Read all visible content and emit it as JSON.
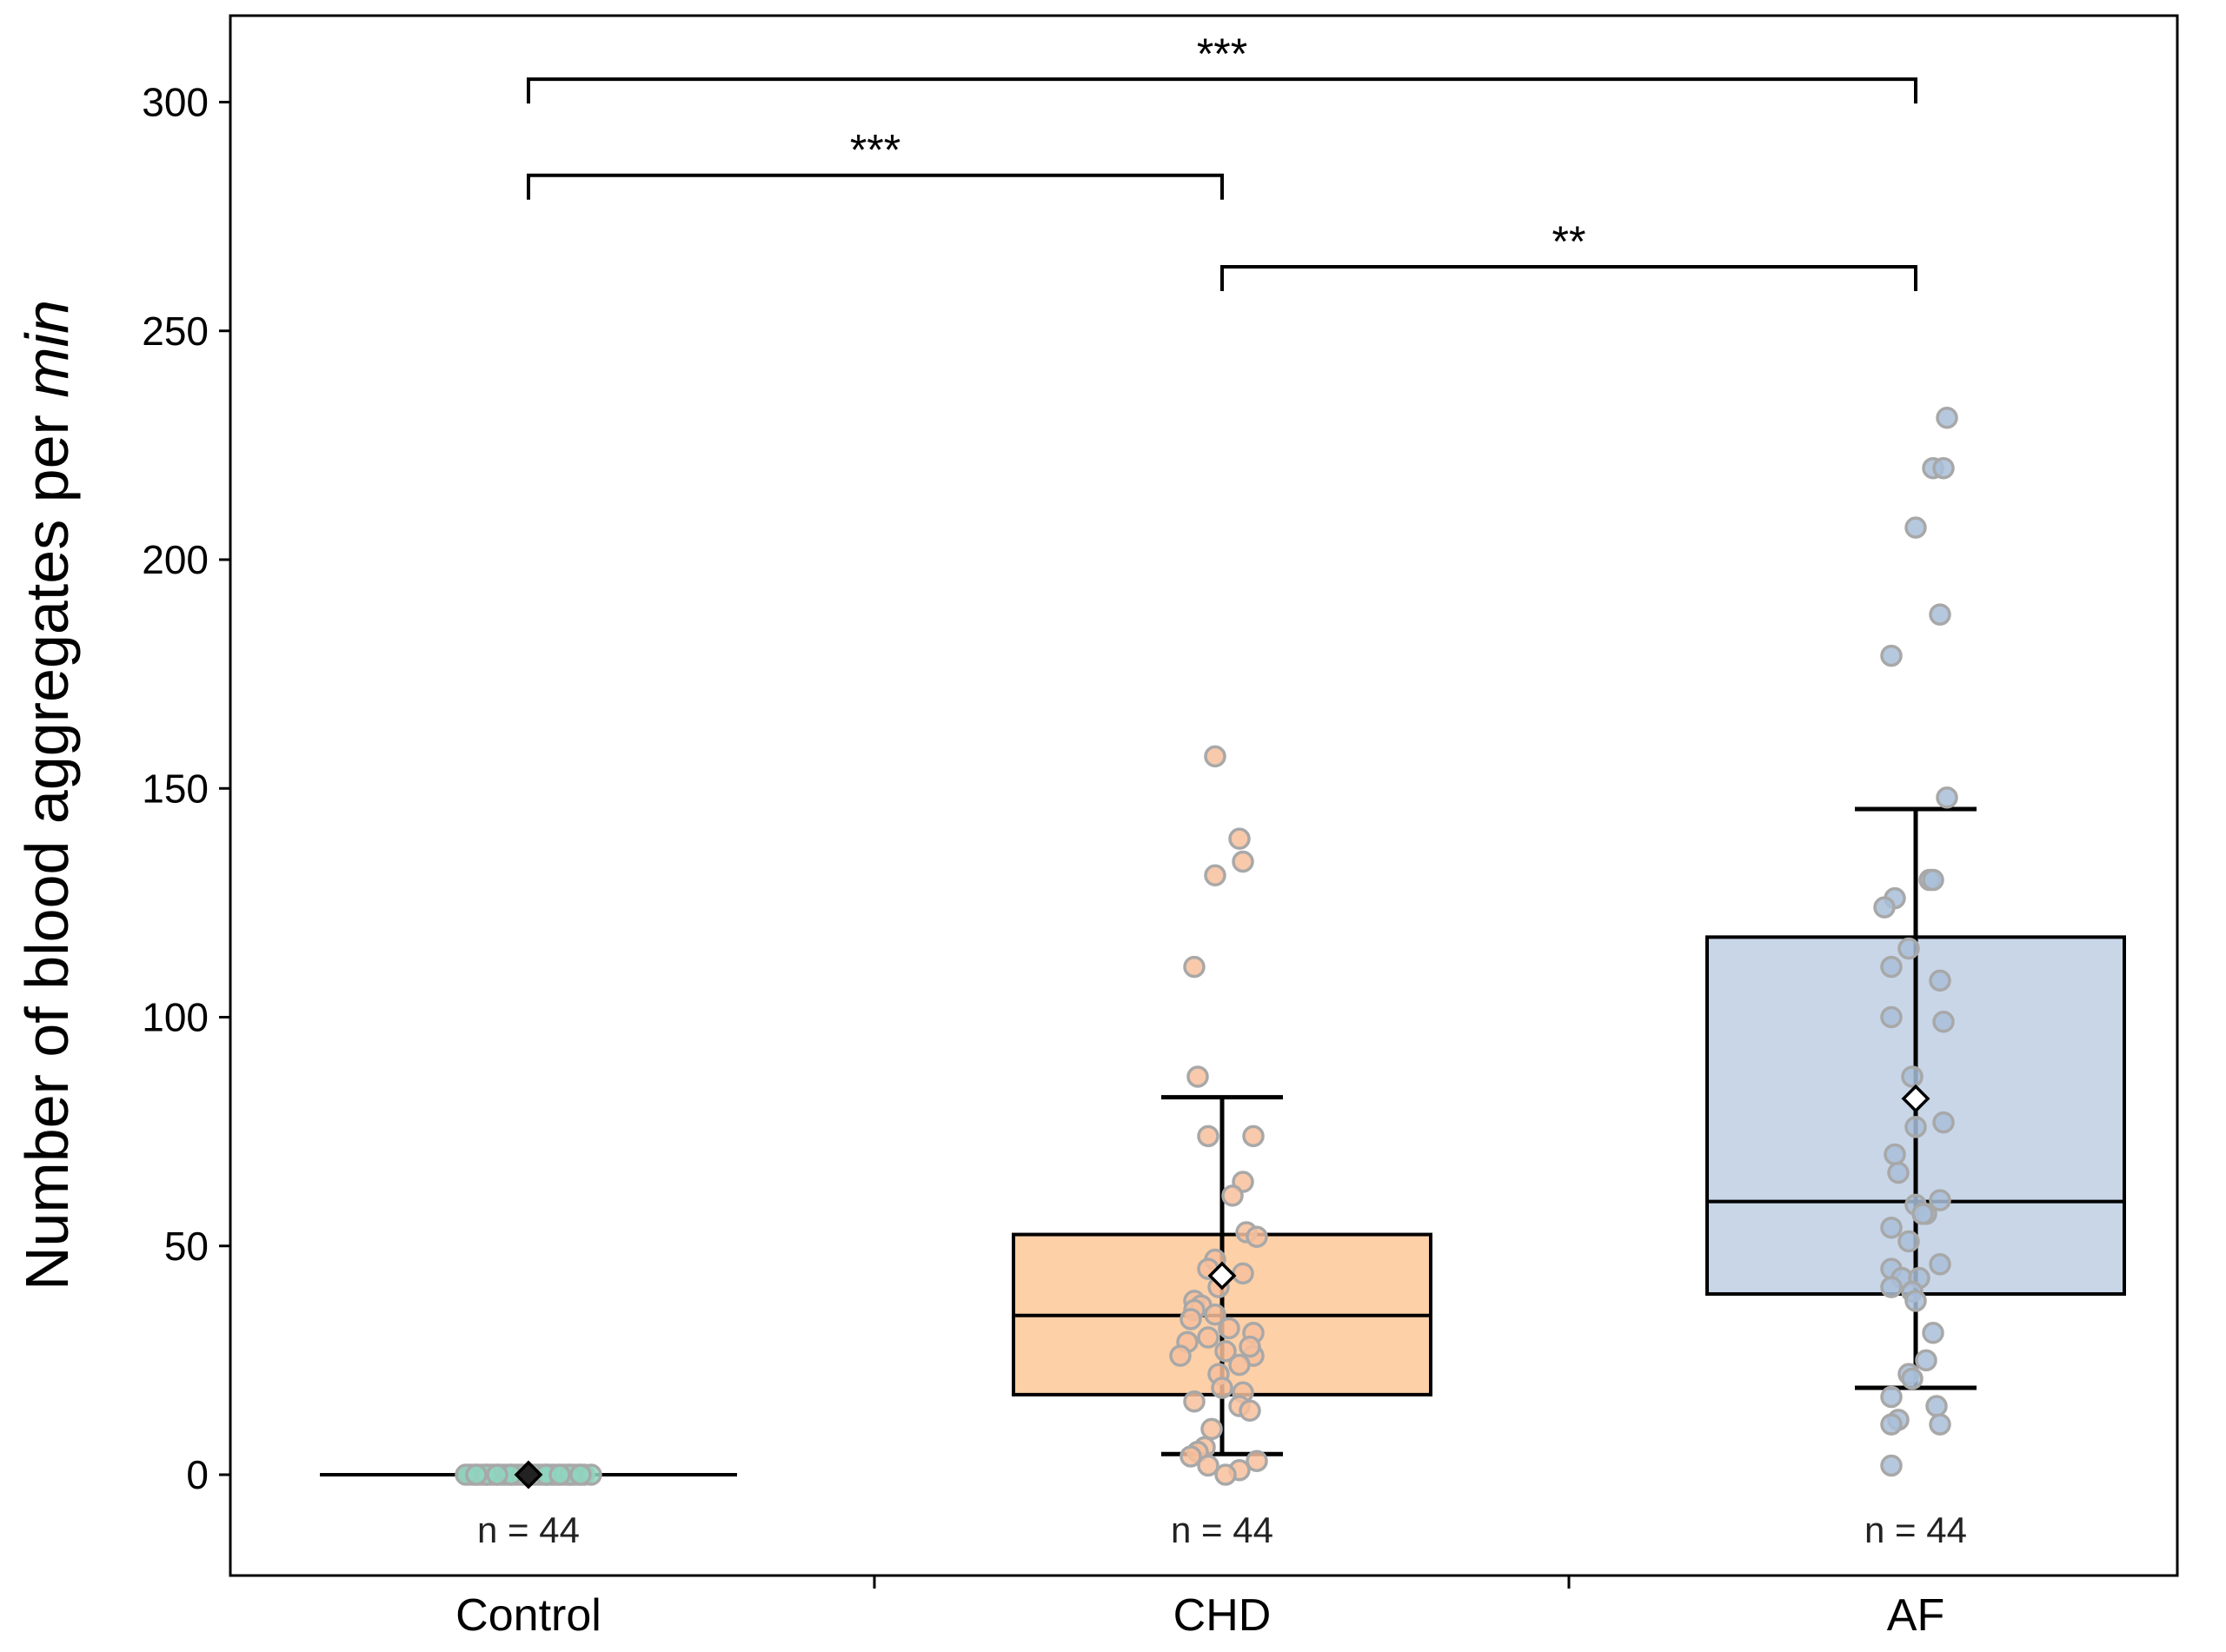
{
  "chart_data": {
    "type": "box",
    "ylabel_main": "Number of blood aggregates per ",
    "ylabel_italic": "min",
    "ylim": [
      -20,
      320
    ],
    "yticks": [
      0,
      50,
      100,
      150,
      200,
      250,
      300
    ],
    "grid": false,
    "categories": [
      "Control",
      "CHD",
      "AF"
    ],
    "groups": [
      {
        "name": "Control",
        "n_label": "n = 44",
        "color": "#8fd6c0",
        "box_fill": "none",
        "q1": 0,
        "median": 0,
        "q3": 0,
        "mean": 0,
        "whisker_low": 0,
        "whisker_high": 0,
        "points": [
          0,
          0,
          0,
          0,
          0,
          0,
          0,
          0,
          0,
          0,
          0,
          0,
          0,
          0,
          0,
          0,
          0,
          0,
          0,
          0,
          0,
          0,
          0,
          0,
          0,
          0,
          0,
          0,
          0,
          0,
          0,
          0,
          0,
          0,
          0,
          0,
          0,
          0,
          0,
          0,
          0,
          0,
          0,
          0
        ],
        "jitter": [
          -0.17,
          -0.15,
          -0.13,
          -0.11,
          -0.09,
          -0.07,
          -0.05,
          -0.03,
          -0.01,
          0.01,
          0.03,
          0.05,
          0.07,
          0.09,
          0.11,
          0.13,
          0.15,
          -0.16,
          -0.12,
          -0.08,
          -0.04,
          0.0,
          0.04,
          0.08,
          0.12,
          0.16,
          -0.14,
          -0.1,
          -0.06,
          -0.02,
          0.02,
          0.06,
          0.1,
          0.14,
          -0.18,
          0.18,
          -0.12,
          0.12,
          -0.05,
          0.05,
          -0.09,
          0.09,
          -0.15,
          0.15
        ]
      },
      {
        "name": "CHD",
        "n_label": "n = 44",
        "color": "#f7c09c",
        "box_fill": "#fdd0a8",
        "q1": 17.5,
        "median": 34.8,
        "q3": 52.5,
        "mean": 43.5,
        "whisker_low": 4.5,
        "whisker_high": 82.5,
        "points": [
          157,
          139,
          134,
          131,
          111,
          87,
          74,
          74,
          64,
          61,
          53,
          52,
          47,
          45,
          44,
          41,
          38,
          37,
          36,
          35,
          34,
          32,
          31,
          30,
          29,
          27,
          26,
          24,
          22,
          19,
          18,
          16,
          15,
          14,
          10,
          6,
          5,
          4,
          3,
          2,
          1,
          0,
          28,
          26
        ],
        "jitter": [
          -0.02,
          0.05,
          0.06,
          -0.02,
          -0.08,
          -0.07,
          -0.04,
          0.09,
          0.06,
          0.03,
          0.07,
          0.1,
          -0.02,
          -0.04,
          0.06,
          -0.01,
          -0.08,
          -0.06,
          -0.08,
          -0.02,
          -0.09,
          0.02,
          0.09,
          -0.04,
          -0.1,
          0.01,
          0.09,
          0.05,
          -0.01,
          0.0,
          0.06,
          -0.08,
          0.05,
          0.08,
          -0.03,
          -0.05,
          -0.07,
          -0.09,
          0.1,
          -0.04,
          0.05,
          0.01,
          0.08,
          -0.12
        ]
      },
      {
        "name": "AF",
        "n_label": "n = 44",
        "color": "#a9bed8",
        "box_fill": "#c8d6e8",
        "q1": 39.5,
        "median": 59.7,
        "q3": 117.5,
        "mean": 82.2,
        "whisker_low": 19,
        "whisker_high": 145.5,
        "points": [
          231,
          220,
          220,
          207,
          188,
          179,
          148,
          130,
          130,
          126,
          124,
          115,
          111,
          108,
          100,
          99,
          87,
          77,
          76,
          70,
          66,
          60,
          59,
          57,
          57,
          54,
          51,
          46,
          45,
          43,
          43,
          41,
          40,
          38,
          31,
          25,
          22,
          21,
          17,
          15,
          12,
          11,
          11,
          2
        ],
        "jitter": [
          0.09,
          0.05,
          0.08,
          0.0,
          0.07,
          -0.07,
          0.09,
          0.04,
          0.05,
          -0.06,
          -0.09,
          -0.02,
          -0.07,
          0.07,
          -0.07,
          0.08,
          -0.01,
          0.08,
          0.0,
          -0.06,
          -0.05,
          0.07,
          0.0,
          0.03,
          0.02,
          -0.07,
          -0.02,
          0.07,
          -0.07,
          -0.04,
          0.01,
          -0.07,
          -0.01,
          0.0,
          0.05,
          0.03,
          -0.02,
          -0.01,
          -0.07,
          0.06,
          -0.05,
          -0.07,
          0.07,
          -0.07
        ]
      }
    ],
    "significance": [
      {
        "from": 0,
        "to": 2,
        "y": 305,
        "label": "***"
      },
      {
        "from": 0,
        "to": 1,
        "y": 284,
        "label": "***"
      },
      {
        "from": 1,
        "to": 2,
        "y": 264,
        "label": "**"
      }
    ]
  }
}
